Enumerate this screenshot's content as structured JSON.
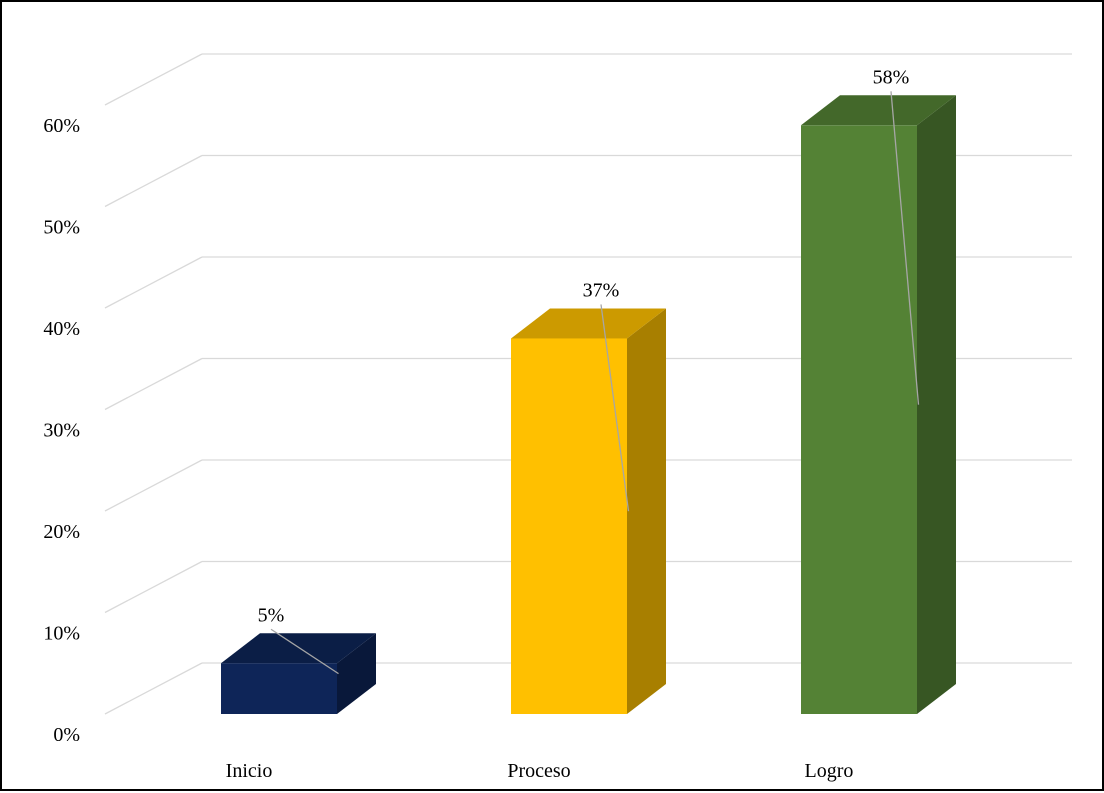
{
  "chart_data": {
    "type": "bar",
    "style": "3d-column",
    "categories": [
      "Inicio",
      "Proceso",
      "Logro"
    ],
    "values": [
      5,
      37,
      58
    ],
    "data_labels": [
      "5%",
      "37%",
      "58%"
    ],
    "colors": [
      "#0E2558",
      "#FFC000",
      "#548235"
    ],
    "ylim": [
      0,
      60
    ],
    "yticks": [
      0,
      10,
      20,
      30,
      40,
      50,
      60
    ],
    "ytick_labels": [
      "0%",
      "10%",
      "20%",
      "30%",
      "40%",
      "50%",
      "60%"
    ],
    "title": "",
    "xlabel": "",
    "ylabel": "",
    "grid": true,
    "legend": "none"
  }
}
